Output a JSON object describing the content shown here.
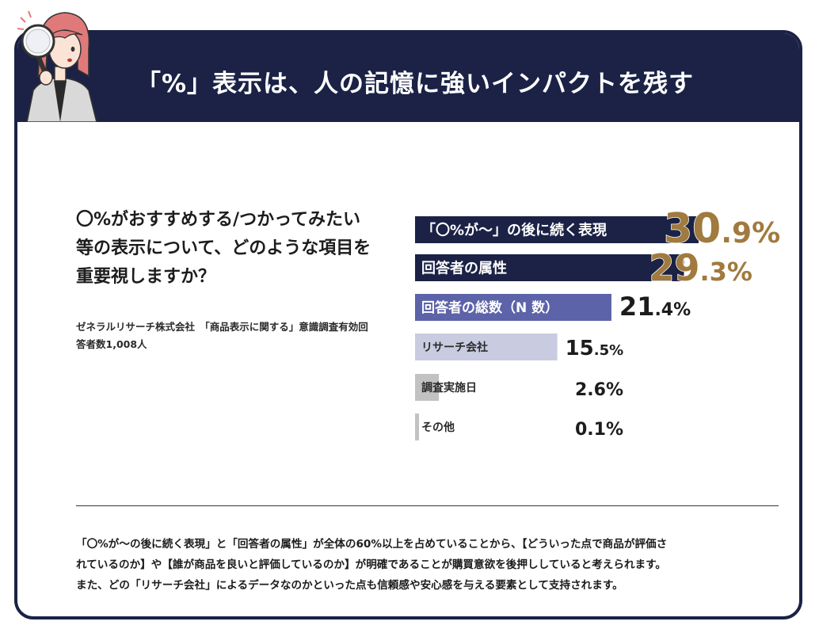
{
  "header": {
    "title": "「%」表示は、人の記憶に強いインパクトを残す"
  },
  "question": {
    "text": "〇%がおすすめする/つかってみたい等の表示について、どのような項目を重要視しますか？"
  },
  "source": {
    "text": "ゼネラルリサーチ株式会社　「商品表示に関する」意識調査有効回答者数1,008人"
  },
  "summary": {
    "lines": [
      "「〇%が〜の後に続く表現」と「回答者の属性」が全体の60%以上を占めていることから、【どういった点で商品が評価さ",
      "れているのか】や【誰が商品を良いと評価しているのか】が明確であることが購買意欲を後押ししていると考えられます。",
      "また、どの「リサーチ会社」によるデータなのかといった点も信頼感や安心感を与える要素として支持されます。"
    ]
  },
  "colors": {
    "navy": "#1b2246",
    "indigo": "#5c63a8",
    "lavender": "#c9cce0",
    "gray": "#c2c2c2",
    "gold": "#a07a3e"
  },
  "chart_data": {
    "type": "bar",
    "orientation": "horizontal",
    "categories": [
      "「〇%が〜」の後に続く表現",
      "回答者の属性",
      "回答者の総数（N 数）",
      "リサーチ会社",
      "調査実施日",
      "その他"
    ],
    "values": [
      30.9,
      29.3,
      21.4,
      15.5,
      2.6,
      0.1
    ],
    "value_labels": [
      {
        "int": "30",
        "dec": ".9%"
      },
      {
        "int": "29",
        "dec": ".3%"
      },
      {
        "int": "21",
        "dec": ".4%"
      },
      {
        "int": "15",
        "dec": ".5%"
      },
      {
        "int": "",
        "dec": "2.6%"
      },
      {
        "int": "",
        "dec": "0.1%"
      }
    ],
    "unit": "%"
  }
}
